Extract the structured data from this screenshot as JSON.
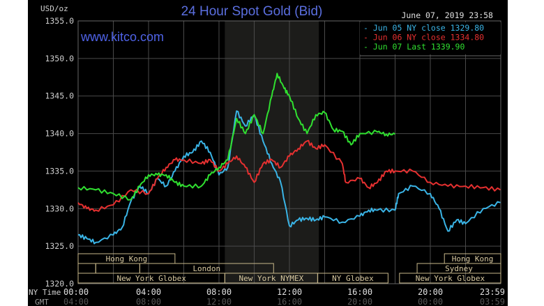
{
  "chart_data": {
    "type": "line",
    "title": "24 Hour Spot Gold (Bid)",
    "watermark": "www.kitco.com",
    "timestamp": "June 07, 2019 23:58",
    "ylabel": "USD/oz",
    "ylim": [
      1320,
      1355
    ],
    "yticks": [
      "1355.0",
      "1350.0",
      "1345.0",
      "1340.0",
      "1335.0",
      "1330.0",
      "1325.0",
      "1320.0"
    ],
    "xlim": [
      0,
      24
    ],
    "xaxis_row_label": "NY Time",
    "xticks": [
      "00:00",
      "04:00",
      "08:00",
      "12:00",
      "16:00",
      "20:00",
      "23:59"
    ],
    "gmt_row_label": "GMT",
    "gmt_ticks": [
      "04:00",
      "08:00",
      "12:00",
      "16:00",
      "20:00",
      "00:00",
      "03:59"
    ],
    "grid": true,
    "legend_position": "top-right",
    "highlight_band_hours": [
      8.33,
      13.67
    ],
    "series": [
      {
        "name": "Jun 05 NY close 1329.80",
        "color": "#3ab4e6",
        "x": [
          0,
          0.5,
          1,
          2,
          2.5,
          3,
          3.5,
          4,
          4.5,
          5,
          5.5,
          6,
          6.5,
          7,
          7.5,
          8,
          8.5,
          9,
          9.5,
          10,
          10.5,
          11,
          11.5,
          12,
          12.5,
          13,
          13.5,
          14,
          15,
          16,
          16.5,
          17,
          18,
          18.2,
          19,
          20,
          20.5,
          21,
          21.5,
          22,
          23,
          23.98
        ],
        "y": [
          1326.5,
          1326,
          1325.5,
          1326.5,
          1327.5,
          1331,
          1333,
          1332,
          1334,
          1333,
          1335,
          1337,
          1337.5,
          1339,
          1337.5,
          1334.5,
          1335.5,
          1343,
          1341,
          1342.5,
          1339,
          1336,
          1333.5,
          1327.7,
          1328.5,
          1328.7,
          1328.5,
          1328.9,
          1328.2,
          1329,
          1329.8,
          1329.8,
          1329.8,
          1332,
          1333,
          1332,
          1330,
          1327,
          1328.5,
          1328,
          1330,
          1330.8
        ]
      },
      {
        "name": "Jun 06 NY close 1334.80",
        "color": "#e63030",
        "x": [
          0,
          0.5,
          1,
          2,
          3,
          4,
          4.5,
          5,
          5.5,
          6,
          7,
          7.5,
          8,
          8.5,
          9,
          9.5,
          10,
          10.5,
          11,
          11.5,
          12,
          12.5,
          13,
          13.5,
          14,
          15,
          15.2,
          16,
          16.5,
          17,
          17.5,
          18,
          19,
          20,
          21,
          22,
          23,
          23.98
        ],
        "y": [
          1330.8,
          1330,
          1329.8,
          1330.5,
          1332.5,
          1332,
          1334,
          1335.5,
          1336.5,
          1336.5,
          1336,
          1336.5,
          1335,
          1336,
          1337,
          1335.5,
          1333.5,
          1336,
          1336.5,
          1335.5,
          1337,
          1338,
          1339,
          1338,
          1338.5,
          1336,
          1333.5,
          1334,
          1332.8,
          1333.5,
          1335,
          1335,
          1335,
          1333.5,
          1333,
          1333,
          1332.8,
          1332.5
        ]
      },
      {
        "name": "Jun 07 Last 1339.90",
        "color": "#30e030",
        "x": [
          0,
          1,
          2,
          3,
          3.5,
          4,
          4.5,
          5,
          5.5,
          6,
          7,
          7.5,
          8,
          8.5,
          9,
          9.5,
          10,
          10.5,
          11,
          11.3,
          11.7,
          12,
          12.5,
          13,
          13.5,
          14,
          14.5,
          15,
          15.5,
          16,
          17,
          17.5,
          18
        ],
        "y": [
          1332.8,
          1332.5,
          1332,
          1331.2,
          1333,
          1334.5,
          1334.5,
          1334.5,
          1333.5,
          1333,
          1333,
          1334.5,
          1335.5,
          1336.5,
          1342,
          1340,
          1342.5,
          1340,
          1345,
          1348,
          1346,
          1345,
          1342,
          1340,
          1342.5,
          1342.8,
          1340.5,
          1340.3,
          1338.5,
          1340,
          1340.2,
          1339.9,
          1339.9
        ]
      }
    ],
    "sessions": [
      {
        "label": "Hong Kong",
        "row": 0,
        "start": 0,
        "end": 5.5
      },
      {
        "label": "Hong Kong",
        "row": 0,
        "start": 20.8,
        "end": 24
      },
      {
        "label": "",
        "row": 1,
        "start": 0,
        "end": 1
      },
      {
        "label": "",
        "row": 1,
        "start": 1,
        "end": 3.5
      },
      {
        "label": "London",
        "row": 1,
        "start": 3.5,
        "end": 11.1
      },
      {
        "label": "Sydney",
        "row": 1,
        "start": 19.25,
        "end": 24
      },
      {
        "label": "New York Globex",
        "row": 2,
        "start": 0,
        "end": 8.33
      },
      {
        "label": "New York NYMEX",
        "row": 2,
        "start": 8.33,
        "end": 13.6
      },
      {
        "label": "NY Globex",
        "row": 2,
        "start": 13.6,
        "end": 17.6
      },
      {
        "label": "New York Globex",
        "row": 2,
        "start": 18.25,
        "end": 24
      }
    ]
  }
}
